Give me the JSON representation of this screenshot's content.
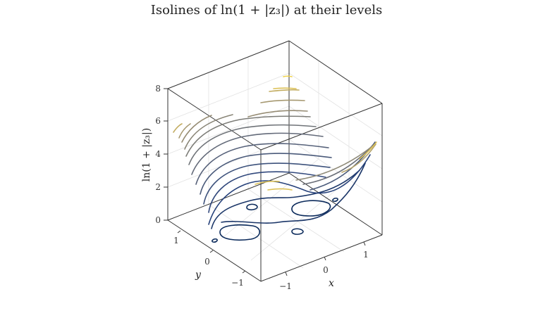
{
  "chart_data": {
    "type": "3d-contour",
    "title": "Isolines of ln(1 + |z₃|) at their levels",
    "xlabel": "x",
    "ylabel": "y",
    "zlabel": "ln(1 + |z₃|)",
    "xlim": [
      -1.6,
      1.6
    ],
    "ylim": [
      -1.6,
      1.6
    ],
    "zlim": [
      0,
      8.2
    ],
    "x_ticks": [
      "−1",
      "0",
      "1"
    ],
    "y_ticks": [
      "−1",
      "0",
      "1"
    ],
    "z_ticks": [
      "0",
      "2",
      "4",
      "6",
      "8"
    ],
    "levels": [
      0.5,
      1.0,
      1.5,
      2.0,
      2.5,
      3.0,
      3.5,
      4.0,
      4.5,
      5.0,
      5.5,
      6.0,
      6.5,
      7.0,
      7.5,
      8.0
    ],
    "colorscale": [
      "#0b2a5b",
      "#26417a",
      "#4a5a7a",
      "#6b6f78",
      "#8f8a78",
      "#b5a46c",
      "#dcc157",
      "#f0d24a"
    ],
    "grid": true
  }
}
